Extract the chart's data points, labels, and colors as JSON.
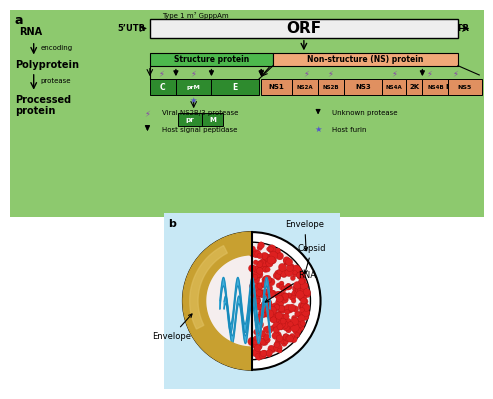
{
  "bg_top": "#8dc96e",
  "bg_bottom": "#c8e8f5",
  "orf_color": "#eeeeee",
  "struct_color": "#4db84d",
  "nonstruct_color": "#f0a878",
  "green_box_color": "#2e8b2e",
  "orange_box_color": "#e09060",
  "panel_a_label": "a",
  "panel_b_label": "b",
  "rna_label": "RNA",
  "encoding_label": "encoding",
  "polyprotein_label": "Polyprotein",
  "protease_label": "protease",
  "processed_label": "Processed\nprotein",
  "utr5_label": "5’UTR",
  "utr3_label": "3’UTR",
  "orf_label": "ORF",
  "cap_label": "Type 1 m⁷ GpppAm",
  "struct_protein_label": "Structure protein",
  "nonstruct_protein_label": "Non-structure (NS) protein",
  "legend_viral": "Viral NS2B/3 protease",
  "legend_host": "Host signal peptidase",
  "legend_unknown": "Unknown protease",
  "legend_furin": "Host furin",
  "envelope_label_left": "Envelope",
  "envelope_label_right": "Envelope",
  "capsid_label": "Capsid",
  "rna_label2": "RNA",
  "envelope_color": "#c8a030",
  "envelope_light": "#e0c060",
  "capsid_fill": "#f5eeee",
  "red_dot_color": "#dd2020",
  "rna_blue": "#30a8d8"
}
